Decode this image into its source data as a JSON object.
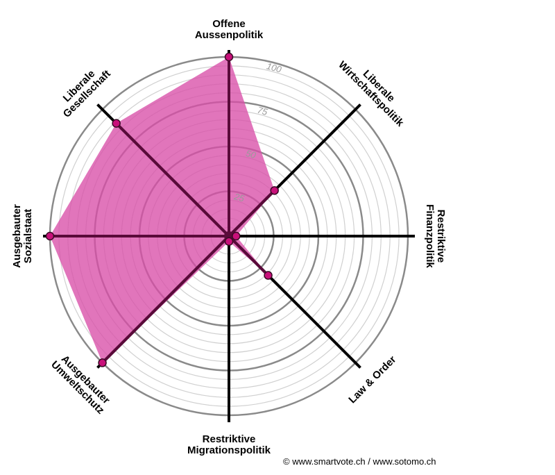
{
  "chart_data": {
    "type": "radar",
    "rmax": 100,
    "ticks": [
      25,
      50,
      75,
      100
    ],
    "tick_labels": [
      "25",
      "50",
      "75",
      "100"
    ],
    "axes": [
      {
        "label_lines": [
          "Offene",
          "Aussenpolitik"
        ],
        "value": 100
      },
      {
        "label_lines": [
          "Liberale",
          "Wirtschaftspolitik"
        ],
        "value": 36
      },
      {
        "label_lines": [
          "Restriktive",
          "Finanzpolitik"
        ],
        "value": 4
      },
      {
        "label_lines": [
          "Law & Order"
        ],
        "value": 31
      },
      {
        "label_lines": [
          "Restriktive",
          "Migrationspolitik"
        ],
        "value": 3
      },
      {
        "label_lines": [
          "Ausgebauter",
          "Umweltschutz"
        ],
        "value": 100
      },
      {
        "label_lines": [
          "Ausgebauter",
          "Sozialstaat"
        ],
        "value": 100
      },
      {
        "label_lines": [
          "Liberale",
          "Gesellschaft"
        ],
        "value": 89
      }
    ],
    "colors": {
      "fill": "#d84ea8",
      "point": "#c8107a",
      "axis_covered": "#5a0a3a",
      "axis": "#000000",
      "ring_major": "#8a8a8a",
      "ring_minor": "#d0d0d0"
    }
  },
  "footer": {
    "credit": "© www.smartvote.ch / www.sotomo.ch"
  }
}
